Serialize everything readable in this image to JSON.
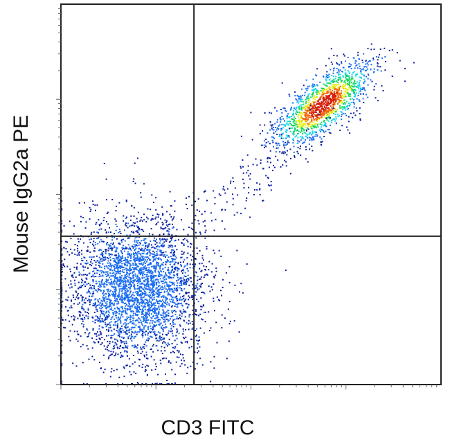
{
  "chart_data": {
    "type": "scatter",
    "subtype": "flow-cytometry-density-dot-plot",
    "title": "",
    "xlabel": "CD3 FITC",
    "ylabel": "Mouse IgG2a PE",
    "x_scale": "log",
    "y_scale": "log",
    "xlim": [
      0,
      10
    ],
    "ylim": [
      0,
      10
    ],
    "tick_labels_x": [],
    "tick_labels_y": [],
    "grid": false,
    "legend": "none",
    "quadrant_gates": {
      "x": 3.5,
      "y": 3.9
    },
    "color_scale": [
      "#0b1f9e",
      "#1a6cf0",
      "#16d5e6",
      "#12d65a",
      "#e6ef1a",
      "#f06a0c",
      "#d41d08"
    ],
    "populations": [
      {
        "center": [
          2.0,
          2.5
        ],
        "spread": [
          0.9,
          0.95
        ],
        "angle_deg": 20,
        "count": 3400,
        "peak_color": "#1a6cf0"
      },
      {
        "center": [
          6.9,
          7.35
        ],
        "spread": [
          0.8,
          0.3
        ],
        "angle_deg": 40,
        "count": 1500,
        "peak_color": "#d41d08"
      },
      {
        "center": [
          5.2,
          5.6
        ],
        "spread": [
          1.2,
          0.3
        ],
        "angle_deg": 40,
        "count": 140,
        "peak_color": "#0b1f9e"
      }
    ]
  }
}
